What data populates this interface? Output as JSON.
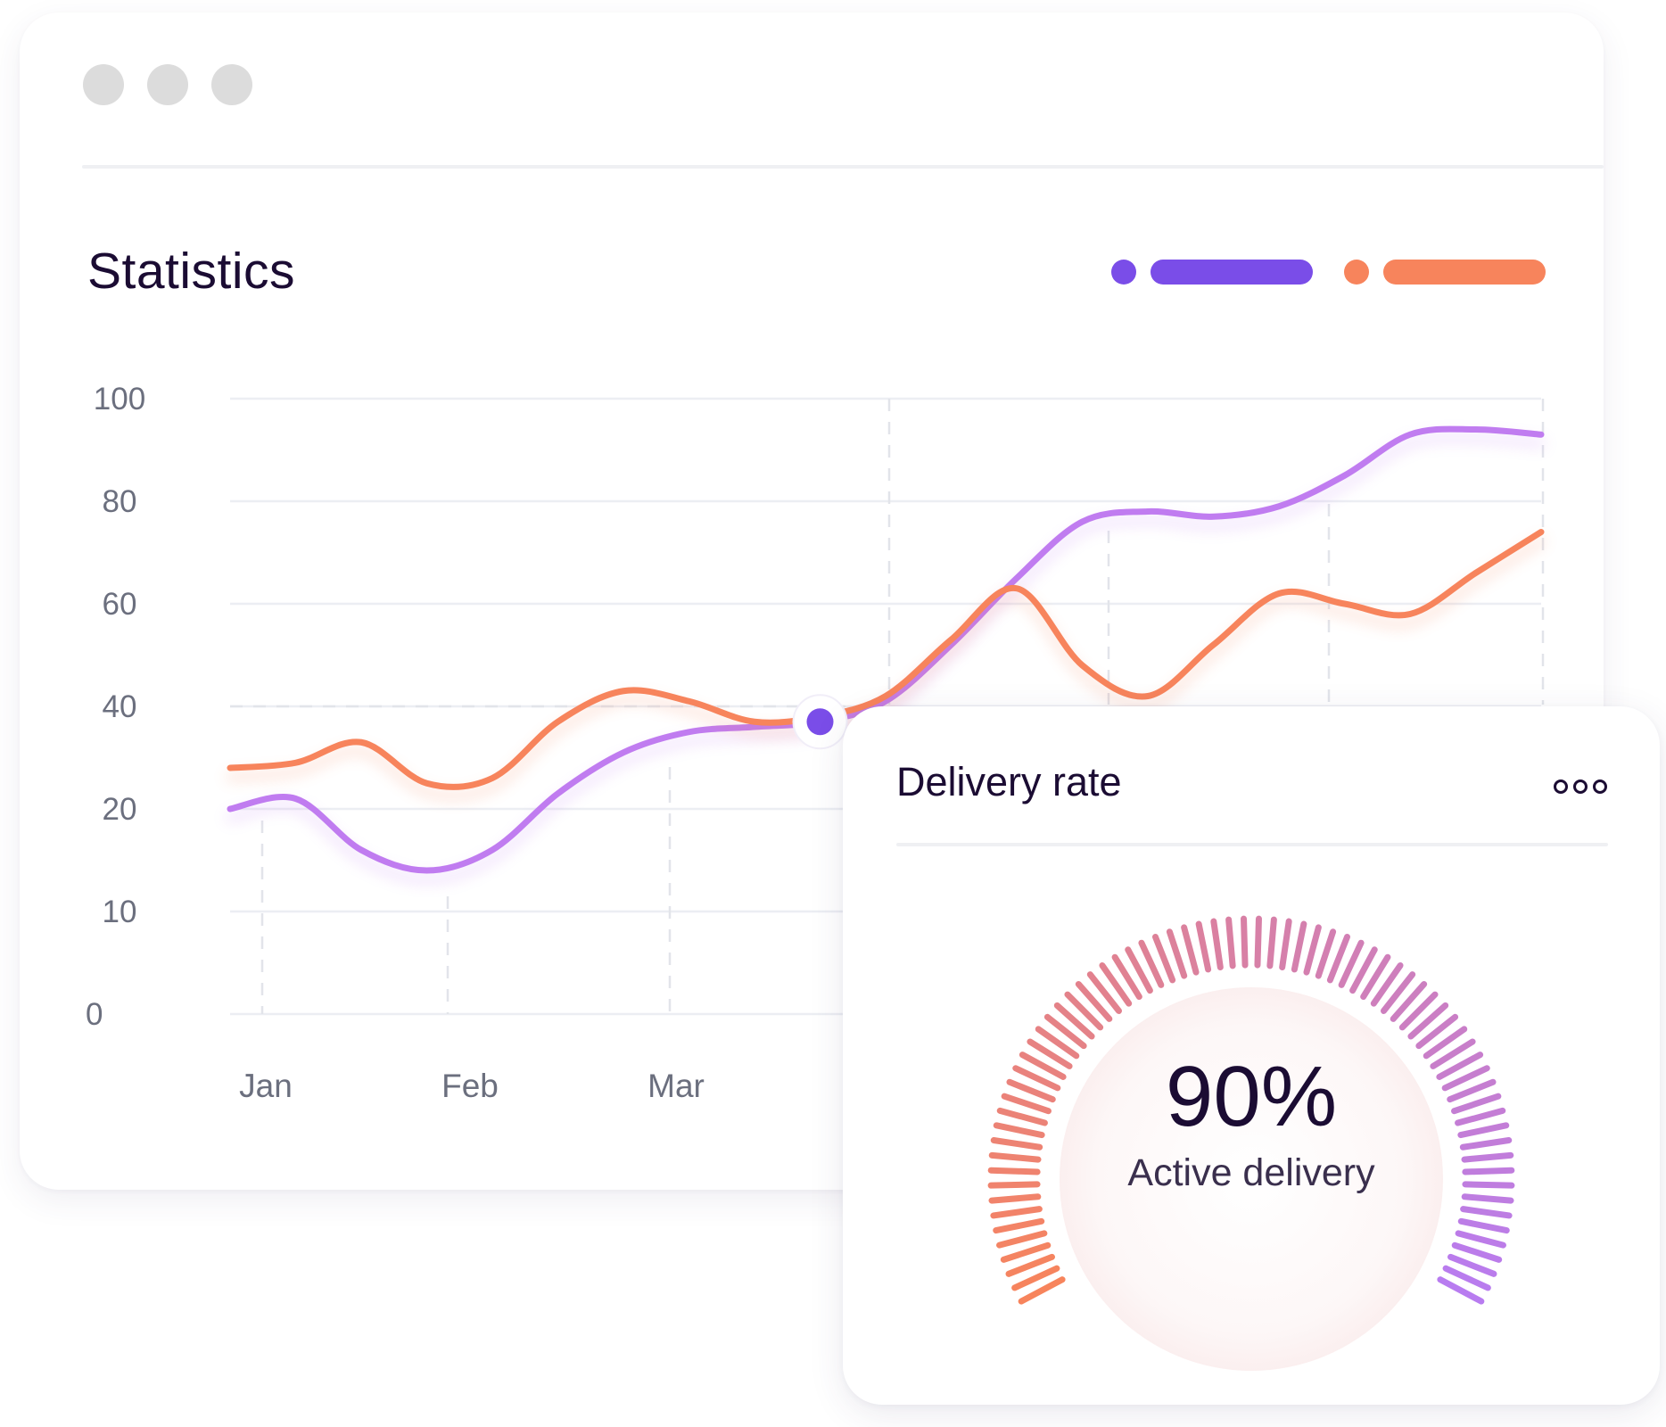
{
  "window": {
    "controls": [
      "close-dot",
      "minimize-dot",
      "maximize-dot"
    ],
    "control_color": "#dcdcdc"
  },
  "statistics": {
    "title": "Statistics",
    "legend": [
      {
        "color": "#7a4de8"
      },
      {
        "color": "#f7845c"
      }
    ]
  },
  "chart_data": {
    "type": "line",
    "title": "Statistics",
    "xlabel": "",
    "ylabel": "",
    "x_tick_labels": [
      "Jan",
      "Feb",
      "Mar"
    ],
    "y_tick_labels": [
      "100",
      "80",
      "60",
      "40",
      "20",
      "10",
      "0"
    ],
    "ylim": [
      0,
      100
    ],
    "grid": true,
    "legend_position": "top-right",
    "highlight_point": {
      "series": 0,
      "index": 9
    },
    "series": [
      {
        "color": "#c07cf0",
        "values": [
          20,
          22,
          16,
          14,
          16,
          23,
          31,
          35,
          36,
          37,
          41,
          52,
          65,
          76,
          78,
          77,
          79,
          85,
          93,
          94,
          93
        ]
      },
      {
        "color": "#f7845c",
        "values": [
          28,
          29,
          33,
          25,
          26,
          37,
          43,
          41,
          37,
          38,
          42,
          53,
          63,
          48,
          42,
          52,
          62,
          60,
          58,
          66,
          74
        ]
      }
    ]
  },
  "delivery_card": {
    "title": "Delivery rate",
    "gauge_value": "90%",
    "gauge_label": "Active delivery",
    "gauge_fraction": 0.9,
    "gauge_start_color": "#f7845c",
    "gauge_end_color": "#b87cf0"
  }
}
